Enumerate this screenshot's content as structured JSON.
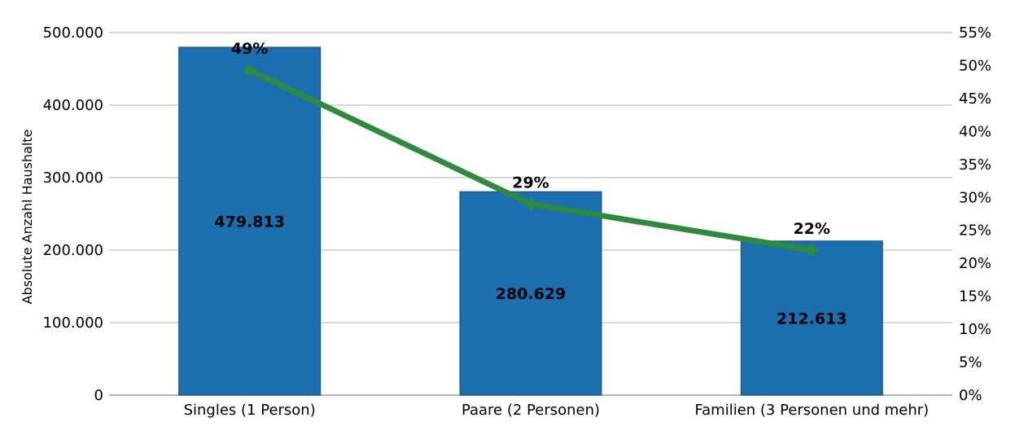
{
  "chart_data": {
    "type": "bar",
    "categories": [
      "Singles (1 Person)",
      "Paare (2 Personen)",
      "Familien (3 Personen und mehr)"
    ],
    "series": [
      {
        "type": "bar",
        "axis": "left",
        "values": [
          479813,
          280629,
          212613
        ],
        "value_labels": [
          "479.813",
          "280.629",
          "212.613"
        ],
        "color": "#1b6fae"
      },
      {
        "type": "line",
        "axis": "right",
        "values": [
          49.3,
          29.0,
          22.0
        ],
        "value_labels": [
          "49%",
          "29%",
          "22%"
        ],
        "color": "#2e8b3e"
      }
    ],
    "ylabel": "Absolute Anzahl Haushalte",
    "ylim": [
      0,
      500000
    ],
    "y_ticks": [
      "0",
      "100.000",
      "200.000",
      "300.000",
      "400.000",
      "500.000"
    ],
    "y2lim": [
      0,
      55
    ],
    "y2_ticks": [
      "0%",
      "5%",
      "10%",
      "15%",
      "20%",
      "25%",
      "30%",
      "35%",
      "40%",
      "45%",
      "50%",
      "55%"
    ],
    "grid": true
  }
}
